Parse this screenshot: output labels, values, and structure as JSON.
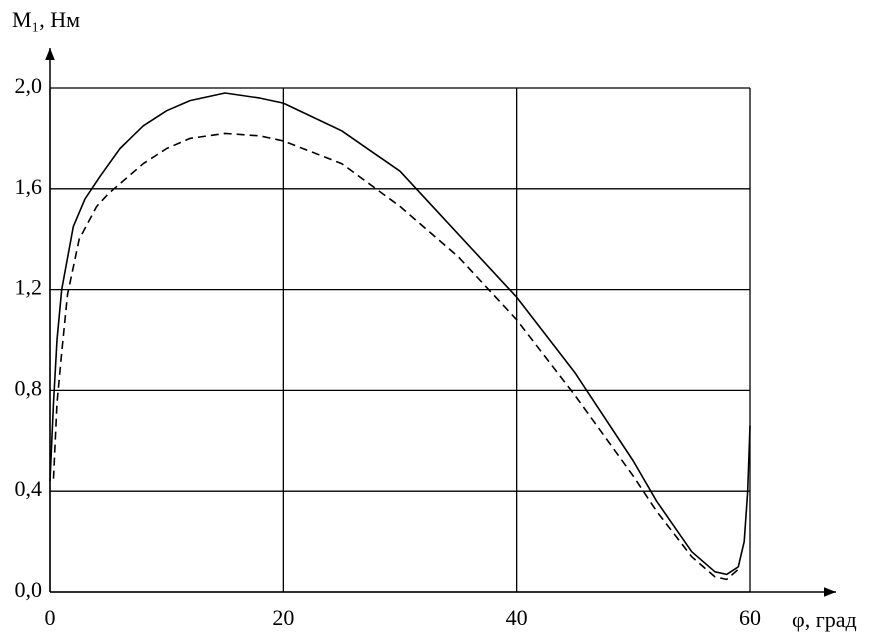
{
  "chart_data": {
    "type": "line",
    "y_label": "M₁, Нм",
    "x_label": "φ, град",
    "xlim": [
      0,
      60
    ],
    "ylim": [
      0,
      2.0
    ],
    "xticks": [
      0,
      20,
      40,
      60
    ],
    "yticks": [
      {
        "value": 0,
        "label": "0,0"
      },
      {
        "value": 0.4,
        "label": "0,4"
      },
      {
        "value": 0.8,
        "label": "0,8"
      },
      {
        "value": 1.2,
        "label": "1,2"
      },
      {
        "value": 1.6,
        "label": "1,6"
      },
      {
        "value": 2.0,
        "label": "2,0"
      }
    ],
    "grid": true,
    "series": [
      {
        "color": "#000000",
        "line_style": "solid",
        "x": [
          0,
          0.3,
          0.6,
          1,
          2,
          3,
          4.3,
          6,
          8,
          10,
          12,
          15,
          18,
          20,
          25,
          30,
          35,
          40,
          45,
          50,
          52,
          55,
          57,
          58,
          59,
          59.5,
          59.8,
          60
        ],
        "values": [
          0.44,
          0.75,
          1.0,
          1.2,
          1.45,
          1.56,
          1.65,
          1.76,
          1.85,
          1.91,
          1.95,
          1.98,
          1.96,
          1.94,
          1.83,
          1.67,
          1.42,
          1.17,
          0.87,
          0.52,
          0.36,
          0.16,
          0.08,
          0.07,
          0.1,
          0.2,
          0.4,
          0.66
        ]
      },
      {
        "color": "#000000",
        "line_style": "dashed",
        "x": [
          0.3,
          0.6,
          1,
          1.5,
          2.5,
          4,
          5,
          8,
          10,
          12,
          15,
          18,
          20,
          25,
          30,
          35,
          40,
          45,
          50,
          52,
          55,
          57,
          58,
          59
        ],
        "values": [
          0.45,
          0.75,
          0.95,
          1.18,
          1.4,
          1.53,
          1.58,
          1.7,
          1.76,
          1.8,
          1.82,
          1.81,
          1.79,
          1.7,
          1.53,
          1.33,
          1.08,
          0.78,
          0.46,
          0.32,
          0.14,
          0.06,
          0.05,
          0.09
        ]
      }
    ]
  }
}
